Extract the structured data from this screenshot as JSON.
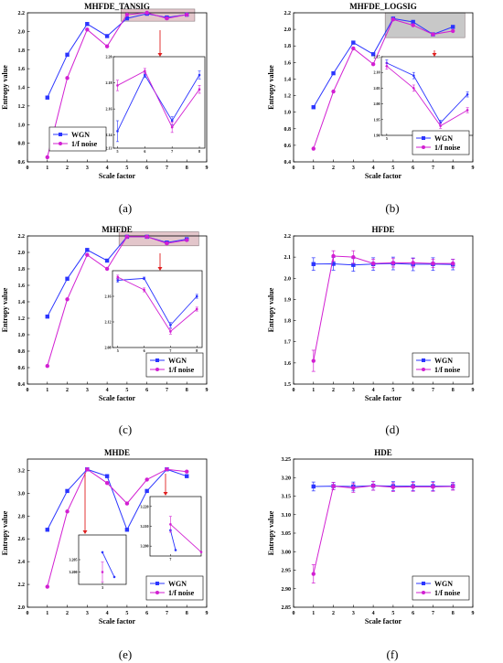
{
  "colors": {
    "wgn": "#2b35ff",
    "noise": "#d21fd2",
    "highlight": "#e3c6cb",
    "highlight_gray": "#c8c8c8",
    "arrow": "#e02020"
  },
  "chart_data": [
    {
      "id": "a",
      "type": "line",
      "title": "MHFDE_TANSIG",
      "caption": "(a)",
      "xlabel": "Scale factor",
      "ylabel": "Entropy value",
      "xlim": [
        0,
        9
      ],
      "ylim": [
        0.6,
        2.2
      ],
      "xticks": [
        "0",
        "1",
        "2",
        "3",
        "4",
        "5",
        "6",
        "7",
        "8",
        "9"
      ],
      "yticks": [
        "0.6",
        "0.8",
        "1.0",
        "1.2",
        "1.4",
        "1.6",
        "1.8",
        "2.0",
        "2.2"
      ],
      "x": [
        1,
        2,
        3,
        4,
        5,
        6,
        7,
        8
      ],
      "series": [
        {
          "name": "WGN",
          "key": "wgn",
          "marker": "square",
          "values": [
            1.29,
            1.75,
            2.08,
            1.95,
            2.14,
            2.19,
            2.15,
            2.18
          ]
        },
        {
          "name": "1/f noise",
          "key": "noise",
          "marker": "circle",
          "values": [
            0.65,
            1.5,
            2.02,
            1.84,
            2.18,
            2.2,
            2.14,
            2.18
          ]
        }
      ],
      "legend": "bottom-left",
      "highlight": {
        "x": [
          4.7,
          8.4
        ],
        "y": [
          2.11,
          2.24
        ],
        "style": "pink"
      },
      "insets": [
        {
          "xlim": [
            4.85,
            8.2
          ],
          "ylim": [
            2.13,
            2.2
          ],
          "xticks": [
            "5",
            "6",
            "7",
            "8"
          ],
          "yticks": [
            "2.13",
            "2.14",
            "2.16",
            "2.18",
            "2.20"
          ],
          "x": [
            5,
            6,
            7,
            8
          ],
          "series": [
            {
              "key": "wgn",
              "values": [
                2.143,
                2.186,
                2.151,
                2.186
              ],
              "err": [
                0.008,
                0.002,
                0.003,
                0.003
              ]
            },
            {
              "key": "noise",
              "values": [
                2.178,
                2.189,
                2.146,
                2.175
              ],
              "err": [
                0.004,
                0.002,
                0.004,
                0.003
              ]
            }
          ]
        }
      ]
    },
    {
      "id": "b",
      "type": "line",
      "title": "MHFDE_LOGSIG",
      "caption": "(b)",
      "xlabel": "Scale factor",
      "ylabel": "Entropy value",
      "xlim": [
        0,
        9
      ],
      "ylim": [
        0.4,
        2.2
      ],
      "xticks": [
        "0",
        "1",
        "2",
        "3",
        "4",
        "5",
        "6",
        "7",
        "8",
        "9"
      ],
      "yticks": [
        "0.4",
        "0.6",
        "0.8",
        "1.0",
        "1.2",
        "1.4",
        "1.6",
        "1.8",
        "2.0",
        "2.2"
      ],
      "x": [
        1,
        2,
        3,
        4,
        5,
        6,
        7,
        8
      ],
      "series": [
        {
          "name": "WGN",
          "key": "wgn",
          "marker": "square",
          "values": [
            1.06,
            1.47,
            1.84,
            1.7,
            2.13,
            2.09,
            1.94,
            2.03
          ]
        },
        {
          "name": "1/f noise",
          "key": "noise",
          "marker": "circle",
          "values": [
            0.56,
            1.25,
            1.77,
            1.58,
            2.12,
            2.05,
            1.94,
            1.98
          ]
        }
      ],
      "legend": "bottom-right",
      "highlight": {
        "x": [
          4.6,
          8.6
        ],
        "y": [
          1.9,
          2.2
        ],
        "style": "gray"
      },
      "insets": [
        {
          "xlim": [
            4.8,
            8.2
          ],
          "ylim": [
            1.9,
            2.15
          ],
          "xticks": [
            "5",
            "6",
            "7",
            "8"
          ],
          "yticks": [
            "1.90",
            "1.95",
            "2.00",
            "2.05",
            "2.10",
            "2.15"
          ],
          "x": [
            5,
            6,
            7,
            8
          ],
          "series": [
            {
              "key": "wgn",
              "values": [
                2.13,
                2.09,
                1.94,
                2.03
              ],
              "err": [
                0.01,
                0.01,
                0.008,
                0.008
              ]
            },
            {
              "key": "noise",
              "values": [
                2.12,
                2.05,
                1.93,
                1.98
              ],
              "err": [
                0.01,
                0.01,
                0.008,
                0.008
              ]
            }
          ]
        }
      ]
    },
    {
      "id": "c",
      "type": "line",
      "title": "MHFDE",
      "caption": "(c)",
      "xlabel": "Scale factor",
      "ylabel": "Entropy value",
      "xlim": [
        0,
        9
      ],
      "ylim": [
        0.4,
        2.2
      ],
      "xticks": [
        "0",
        "1",
        "2",
        "3",
        "4",
        "5",
        "6",
        "7",
        "8",
        "9"
      ],
      "yticks": [
        "0.4",
        "0.6",
        "0.8",
        "1.0",
        "1.2",
        "1.4",
        "1.6",
        "1.8",
        "2.0",
        "2.2"
      ],
      "x": [
        1,
        2,
        3,
        4,
        5,
        6,
        7,
        8
      ],
      "series": [
        {
          "name": "WGN",
          "key": "wgn",
          "marker": "square",
          "values": [
            1.22,
            1.68,
            2.03,
            1.9,
            2.19,
            2.19,
            2.12,
            2.16
          ]
        },
        {
          "name": "1/f noise",
          "key": "noise",
          "marker": "circle",
          "values": [
            0.62,
            1.43,
            1.97,
            1.8,
            2.19,
            2.19,
            2.11,
            2.15
          ]
        }
      ],
      "legend": "bottom-right",
      "highlight": {
        "x": [
          4.6,
          8.6
        ],
        "y": [
          2.08,
          2.25
        ],
        "style": "pink"
      },
      "insets": [
        {
          "xlim": [
            4.8,
            8.2
          ],
          "ylim": [
            2.08,
            2.2
          ],
          "xticks": [
            "5",
            "6",
            "7",
            "8"
          ],
          "yticks": [
            "2.08",
            "2.12",
            "2.16"
          ],
          "x": [
            5,
            6,
            7,
            8
          ],
          "series": [
            {
              "key": "wgn",
              "values": [
                2.185,
                2.188,
                2.115,
                2.16
              ],
              "err": [
                0.003,
                0.002,
                0.004,
                0.003
              ]
            },
            {
              "key": "noise",
              "values": [
                2.19,
                2.17,
                2.105,
                2.14
              ],
              "err": [
                0.003,
                0.003,
                0.004,
                0.003
              ]
            }
          ]
        }
      ]
    },
    {
      "id": "d",
      "type": "line",
      "title": "HFDE",
      "caption": "(d)",
      "xlabel": "Scale factor",
      "ylabel": "Entropy value",
      "xlim": [
        0,
        9
      ],
      "ylim": [
        1.5,
        2.2
      ],
      "xticks": [
        "0",
        "1",
        "2",
        "3",
        "4",
        "5",
        "6",
        "7",
        "8",
        "9"
      ],
      "yticks": [
        "1.5",
        "1.6",
        "1.7",
        "1.8",
        "1.9",
        "2.0",
        "2.1",
        "2.2"
      ],
      "x": [
        1,
        2,
        3,
        4,
        5,
        6,
        7,
        8
      ],
      "series": [
        {
          "name": "WGN",
          "key": "wgn",
          "marker": "square",
          "values": [
            2.067,
            2.068,
            2.063,
            2.067,
            2.07,
            2.066,
            2.067,
            2.065
          ],
          "err": [
            0.03,
            0.03,
            0.03,
            0.03,
            0.03,
            0.03,
            0.03,
            0.025
          ]
        },
        {
          "name": "1/f noise",
          "key": "noise",
          "marker": "circle",
          "values": [
            1.61,
            2.105,
            2.1,
            2.07,
            2.073,
            2.073,
            2.07,
            2.07
          ],
          "err": [
            0.05,
            0.025,
            0.03,
            0.02,
            0.02,
            0.02,
            0.02,
            0.02
          ]
        }
      ],
      "legend": "bottom-right"
    },
    {
      "id": "e",
      "type": "line",
      "title": "MHDE",
      "caption": "(e)",
      "xlabel": "Scale factor",
      "ylabel": "Entropy value",
      "xlim": [
        0,
        9
      ],
      "ylim": [
        2.0,
        3.3
      ],
      "xticks": [
        "0",
        "1",
        "2",
        "3",
        "4",
        "5",
        "6",
        "7",
        "8",
        "9"
      ],
      "yticks": [
        "2.0",
        "2.2",
        "2.4",
        "2.6",
        "2.8",
        "3.0",
        "3.2"
      ],
      "x": [
        1,
        2,
        3,
        4,
        5,
        6,
        7,
        8
      ],
      "series": [
        {
          "name": "WGN",
          "key": "wgn",
          "marker": "square",
          "values": [
            2.68,
            3.02,
            3.21,
            3.15,
            2.68,
            3.02,
            3.21,
            3.15
          ]
        },
        {
          "name": "1/f noise",
          "key": "noise",
          "marker": "circle",
          "values": [
            2.18,
            2.84,
            3.21,
            3.09,
            2.91,
            3.12,
            3.21,
            3.19
          ]
        }
      ],
      "legend": "bottom-right",
      "insets": [
        {
          "xlim": [
            2.9,
            3.1
          ],
          "ylim": [
            3.195,
            3.215
          ],
          "xticks": [
            "3"
          ],
          "yticks": [
            "3.200",
            "3.205"
          ],
          "series": [
            {
              "key": "wgn",
              "x": [
                3.0,
                3.05
              ],
              "values": [
                3.208,
                3.198
              ]
            },
            {
              "key": "noise",
              "x": [
                3.0
              ],
              "values": [
                3.2
              ],
              "err": [
                0.004
              ]
            }
          ]
        },
        {
          "xlim": [
            6.8,
            7.3
          ],
          "ylim": [
            3.195,
            3.225
          ],
          "xticks": [
            "7"
          ],
          "yticks": [
            "3.200",
            "3.210",
            "3.220"
          ],
          "series": [
            {
              "key": "wgn",
              "x": [
                7.0,
                7.05
              ],
              "values": [
                3.208,
                3.198
              ]
            },
            {
              "key": "noise",
              "x": [
                7.0,
                7.3
              ],
              "values": [
                3.211,
                3.197
              ],
              "err": [
                0.004,
                0
              ]
            }
          ]
        }
      ]
    },
    {
      "id": "f",
      "type": "line",
      "title": "HDE",
      "caption": "(f)",
      "xlabel": "Scale factor",
      "ylabel": "Entropy value",
      "xlim": [
        0,
        9
      ],
      "ylim": [
        2.85,
        3.25
      ],
      "xticks": [
        "0",
        "1",
        "2",
        "3",
        "4",
        "5",
        "6",
        "7",
        "8",
        "9"
      ],
      "yticks": [
        "2.85",
        "2.90",
        "2.95",
        "3.00",
        "3.05",
        "3.10",
        "3.15",
        "3.20",
        "3.25"
      ],
      "x": [
        1,
        2,
        3,
        4,
        5,
        6,
        7,
        8
      ],
      "series": [
        {
          "name": "WGN",
          "key": "wgn",
          "marker": "square",
          "values": [
            3.176,
            3.177,
            3.176,
            3.178,
            3.177,
            3.177,
            3.177,
            3.177
          ],
          "err": [
            0.012,
            0.01,
            0.012,
            0.012,
            0.012,
            0.012,
            0.012,
            0.01
          ]
        },
        {
          "name": "1/f noise",
          "key": "noise",
          "marker": "circle",
          "values": [
            2.94,
            3.177,
            3.172,
            3.178,
            3.174,
            3.175,
            3.175,
            3.176
          ],
          "err": [
            0.025,
            0.01,
            0.012,
            0.012,
            0.012,
            0.012,
            0.012,
            0.01
          ]
        }
      ],
      "legend": "bottom-right"
    }
  ]
}
